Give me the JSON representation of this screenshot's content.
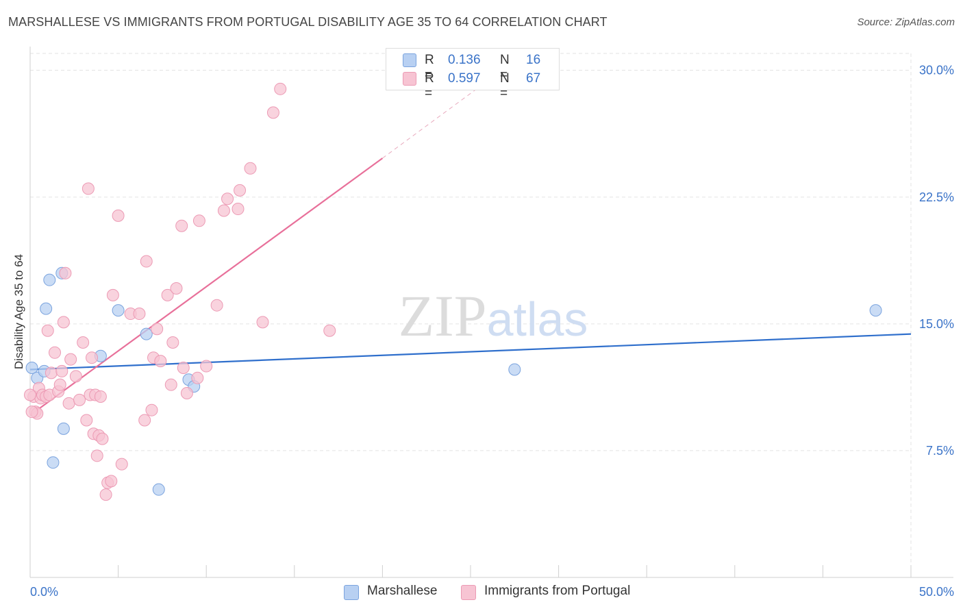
{
  "header": {
    "title": "MARSHALLESE VS IMMIGRANTS FROM PORTUGAL DISABILITY AGE 35 TO 64 CORRELATION CHART",
    "source": "Source: ZipAtlas.com"
  },
  "legend": {
    "rows": [
      {
        "r_label": "R =",
        "r_value": "0.136",
        "n_label": "N =",
        "n_value": "16"
      },
      {
        "r_label": "R =",
        "r_value": "0.597",
        "n_label": "N =",
        "n_value": "67"
      }
    ]
  },
  "bottom_legend": {
    "items": [
      {
        "label": "Marshallese"
      },
      {
        "label": "Immigrants from Portugal"
      }
    ]
  },
  "colors": {
    "blue_fill": "#b8d0f2",
    "blue_stroke": "#7aa3de",
    "blue_line": "#2f6fcc",
    "pink_fill": "#f7c4d3",
    "pink_stroke": "#ec9ab4",
    "pink_line": "#e8709a",
    "tick_label": "#3a73c8",
    "grid": "#e3e3e3"
  },
  "chart_data": {
    "type": "scatter",
    "title": "MARSHALLESE VS IMMIGRANTS FROM PORTUGAL DISABILITY AGE 35 TO 64 CORRELATION CHART",
    "xlabel": "",
    "ylabel": "Disability Age 35 to 64",
    "xlim": [
      0,
      50
    ],
    "ylim": [
      0,
      31
    ],
    "x_tick_labels": [
      "0.0%",
      "50.0%"
    ],
    "y_ticks": [
      7.5,
      15.0,
      22.5,
      30.0
    ],
    "y_tick_labels": [
      "7.5%",
      "15.0%",
      "22.5%",
      "30.0%"
    ],
    "watermark": "ZIPatlas",
    "series": [
      {
        "name": "Marshallese",
        "color": "blue",
        "points": [
          [
            0.1,
            12.4
          ],
          [
            0.4,
            11.8
          ],
          [
            0.8,
            12.2
          ],
          [
            0.9,
            15.9
          ],
          [
            1.1,
            17.6
          ],
          [
            1.8,
            18.0
          ],
          [
            1.9,
            8.8
          ],
          [
            1.3,
            6.8
          ],
          [
            4.0,
            13.1
          ],
          [
            5.0,
            15.8
          ],
          [
            6.6,
            14.4
          ],
          [
            7.3,
            5.2
          ],
          [
            9.0,
            11.7
          ],
          [
            9.3,
            11.3
          ],
          [
            27.5,
            12.3
          ],
          [
            48.0,
            15.8
          ]
        ],
        "trend": {
          "x0": 0,
          "y0": 12.3,
          "x1": 50,
          "y1": 14.4
        }
      },
      {
        "name": "Immigrants from Portugal",
        "color": "pink",
        "points": [
          [
            0.2,
            10.7
          ],
          [
            0.3,
            9.8
          ],
          [
            0.4,
            9.7
          ],
          [
            0.5,
            11.2
          ],
          [
            0.6,
            10.6
          ],
          [
            0.7,
            10.8
          ],
          [
            0.9,
            10.7
          ],
          [
            1.0,
            14.6
          ],
          [
            1.1,
            10.8
          ],
          [
            1.2,
            12.1
          ],
          [
            1.4,
            13.3
          ],
          [
            1.6,
            11.0
          ],
          [
            1.7,
            11.4
          ],
          [
            1.8,
            12.2
          ],
          [
            1.9,
            15.1
          ],
          [
            2.0,
            18.0
          ],
          [
            2.2,
            10.3
          ],
          [
            2.3,
            12.9
          ],
          [
            2.6,
            11.9
          ],
          [
            2.8,
            10.5
          ],
          [
            3.0,
            13.9
          ],
          [
            3.2,
            9.3
          ],
          [
            3.4,
            10.8
          ],
          [
            3.5,
            13.0
          ],
          [
            3.6,
            8.5
          ],
          [
            3.7,
            10.8
          ],
          [
            3.8,
            7.2
          ],
          [
            4.0,
            10.7
          ],
          [
            4.3,
            4.9
          ],
          [
            4.4,
            5.6
          ],
          [
            4.6,
            5.7
          ],
          [
            3.9,
            8.4
          ],
          [
            4.1,
            8.2
          ],
          [
            4.7,
            16.7
          ],
          [
            5.0,
            21.4
          ],
          [
            5.2,
            6.7
          ],
          [
            3.3,
            23.0
          ],
          [
            5.7,
            15.6
          ],
          [
            6.2,
            15.6
          ],
          [
            6.5,
            9.3
          ],
          [
            6.6,
            18.7
          ],
          [
            6.9,
            9.9
          ],
          [
            7.0,
            13.0
          ],
          [
            7.2,
            14.7
          ],
          [
            7.4,
            12.8
          ],
          [
            7.8,
            16.7
          ],
          [
            8.0,
            11.4
          ],
          [
            8.1,
            13.9
          ],
          [
            8.3,
            17.1
          ],
          [
            8.6,
            20.8
          ],
          [
            8.7,
            12.4
          ],
          [
            8.9,
            10.9
          ],
          [
            9.5,
            11.8
          ],
          [
            9.6,
            21.1
          ],
          [
            10.0,
            12.5
          ],
          [
            10.6,
            16.1
          ],
          [
            11.0,
            21.7
          ],
          [
            11.2,
            22.4
          ],
          [
            11.8,
            21.8
          ],
          [
            11.9,
            22.9
          ],
          [
            12.5,
            24.2
          ],
          [
            13.2,
            15.1
          ],
          [
            13.8,
            27.5
          ],
          [
            14.2,
            28.9
          ],
          [
            17.0,
            14.6
          ],
          [
            0.1,
            9.8
          ],
          [
            0.0,
            10.8
          ]
        ],
        "trend": {
          "x0": 0,
          "y0": 9.6,
          "x1": 20,
          "y1": 24.8
        },
        "trend_dashed_to": {
          "x": 26,
          "y": 29.4
        }
      }
    ]
  }
}
